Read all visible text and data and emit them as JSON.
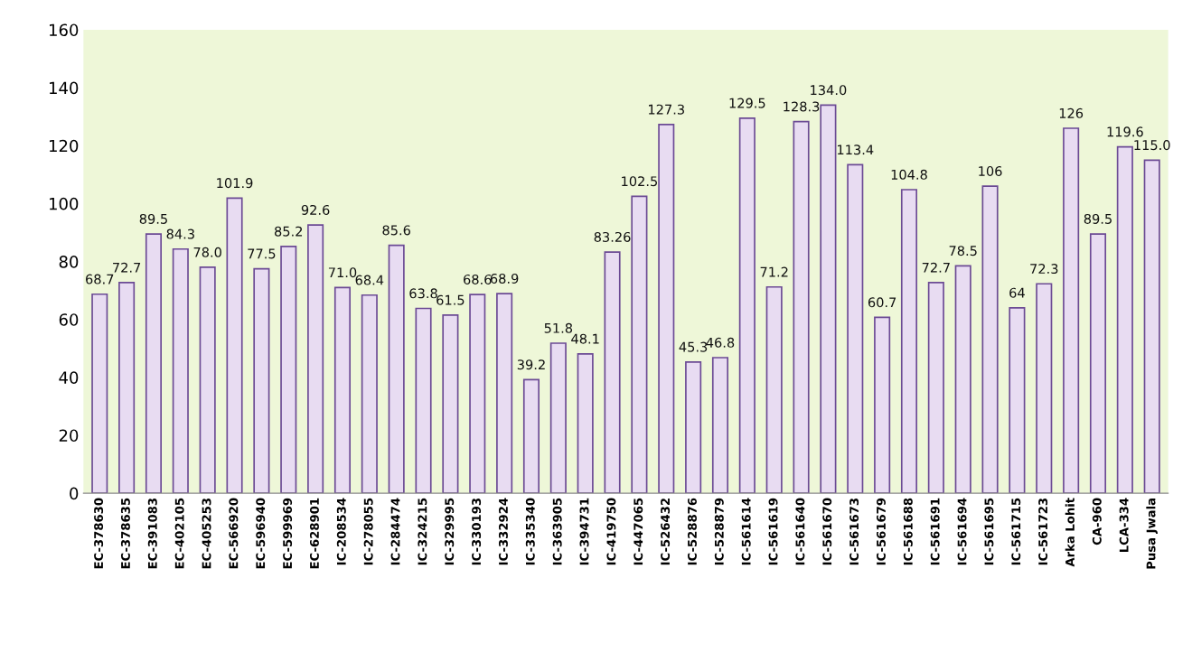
{
  "chart_data": {
    "type": "bar",
    "categories": [
      "EC-378630",
      "EC-378635",
      "EC-391083",
      "EC-402105",
      "EC-405253",
      "EC-566920",
      "EC-596940",
      "EC-599969",
      "EC-628901",
      "IC-208534",
      "IC-278055",
      "IC-284474",
      "IC-324215",
      "IC-329995",
      "IC-330193",
      "IC-332924",
      "IC-335340",
      "IC-363905",
      "IC-394731",
      "IC-419750",
      "IC-447065",
      "IC-526432",
      "IC-528876",
      "IC-528879",
      "IC-561614",
      "IC-561619",
      "IC-561640",
      "IC-561670",
      "IC-561673",
      "IC-561679",
      "IC-561688",
      "IC-561691",
      "IC-561694",
      "IC-561695",
      "IC-561715",
      "IC-561723",
      "Arka Lohit",
      "CA-960",
      "LCA-334",
      "Pusa Jwala"
    ],
    "values": [
      68.7,
      72.7,
      89.5,
      84.3,
      78.0,
      101.9,
      77.5,
      85.2,
      92.6,
      71.0,
      68.4,
      85.6,
      63.8,
      61.5,
      68.6,
      68.9,
      39.2,
      51.8,
      48.1,
      83.26,
      102.5,
      127.3,
      45.3,
      46.8,
      129.5,
      71.2,
      128.3,
      134.0,
      113.4,
      60.7,
      104.8,
      72.7,
      78.5,
      106,
      64,
      72.3,
      126,
      89.5,
      119.6,
      115.0
    ],
    "value_labels": [
      "68.7",
      "72.7",
      "89.5",
      "84.3",
      "78.0",
      "101.9",
      "77.5",
      "85.2",
      "92.6",
      "71.0",
      "68.4",
      "85.6",
      "63.8",
      "61.5",
      "68.6",
      "68.9",
      "39.2",
      "51.8",
      "48.1",
      "83.26",
      "102.5",
      "127.3",
      "45.3",
      "46.8",
      "129.5",
      "71.2",
      "128.3",
      "134.0",
      "113.4",
      "60.7",
      "104.8",
      "72.7",
      "78.5",
      "106",
      "64",
      "72.3",
      "126",
      "89.5",
      "119.6",
      "115.0"
    ],
    "color": "#e8dcf2",
    "ylim": [
      0,
      160
    ],
    "yticks": [
      0,
      20,
      40,
      60,
      80,
      100,
      120,
      140,
      160
    ],
    "grid": false,
    "legend": false
  }
}
